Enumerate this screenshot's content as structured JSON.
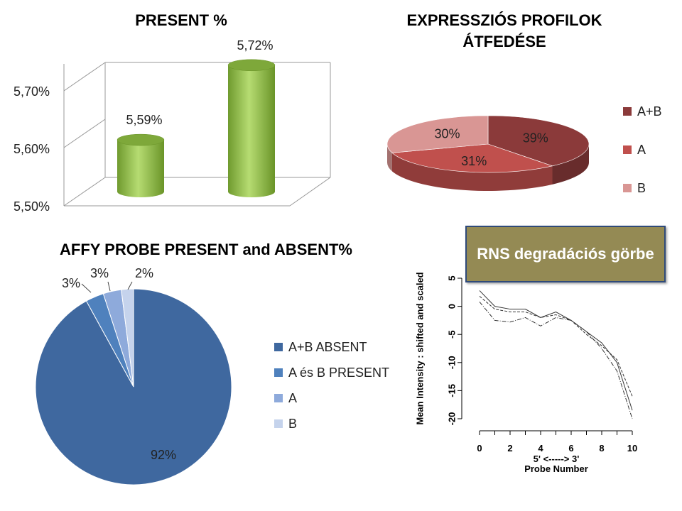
{
  "chart_data": [
    {
      "type": "bar",
      "title": "PRESENT %",
      "categories": [
        "",
        ""
      ],
      "values": [
        5.59,
        5.72
      ],
      "data_labels": [
        "5,59%",
        "5,72%"
      ],
      "yticks": [
        "5,50%",
        "5,60%",
        "5,70%"
      ],
      "ytick_values": [
        5.5,
        5.6,
        5.7
      ],
      "ylim": [
        5.5,
        5.75
      ],
      "colors": [
        "#92c046"
      ]
    },
    {
      "type": "pie",
      "title": "EXPRESSZIÓS PROFILOK ÁTFEDÉSE",
      "labels": [
        "A+B",
        "A",
        "B"
      ],
      "values": [
        39,
        31,
        30
      ],
      "data_labels": [
        "39%",
        "31%",
        "30%"
      ],
      "colors": [
        "#8b3a3a",
        "#c0504d",
        "#d99694"
      ],
      "legend": "right"
    },
    {
      "type": "pie",
      "title": "AFFY PROBE PRESENT and ABSENT%",
      "labels": [
        "A+B ABSENT",
        "A és B PRESENT",
        "A",
        "B"
      ],
      "values": [
        92,
        3,
        3,
        2
      ],
      "data_labels": [
        "92%",
        "3%",
        "3%",
        "2%"
      ],
      "colors": [
        "#3f689f",
        "#4f81bd",
        "#8eaadb",
        "#c5d3ec"
      ],
      "legend": "right"
    },
    {
      "type": "line",
      "xlabel": "5' <-----> 3'\nProbe Number",
      "xlabel_line1": "5' <-----> 3'",
      "xlabel_line2": "Probe Number",
      "ylabel": "Mean Intensity : shifted and scaled",
      "xticks": [
        "0",
        "2",
        "4",
        "6",
        "8",
        "10"
      ],
      "xtick_values": [
        0,
        2,
        4,
        6,
        8,
        10
      ],
      "yticks": [
        "5",
        "0",
        "-5",
        "-10",
        "-15",
        "-20"
      ],
      "ytick_values": [
        5,
        0,
        -5,
        -10,
        -15,
        -20
      ],
      "xlim": [
        0,
        10
      ],
      "ylim": [
        -20,
        5
      ],
      "x": [
        0,
        1,
        2,
        3,
        4,
        5,
        6,
        7,
        8,
        9,
        10
      ],
      "series": [
        {
          "values": [
            2.8,
            0,
            -0.5,
            -0.5,
            -2,
            -1,
            -2.5,
            -4.5,
            -6.5,
            -10,
            -18.5
          ]
        },
        {
          "values": [
            1.8,
            -0.5,
            -1,
            -1,
            -2,
            -1.5,
            -2.5,
            -5,
            -7,
            -9.5,
            -16
          ]
        },
        {
          "values": [
            0.8,
            -2.5,
            -2.8,
            -2,
            -3.5,
            -2,
            -2.5,
            -4.5,
            -7.5,
            -11.5,
            -20
          ]
        }
      ]
    }
  ],
  "rns_title": "RNS degradációs görbe"
}
